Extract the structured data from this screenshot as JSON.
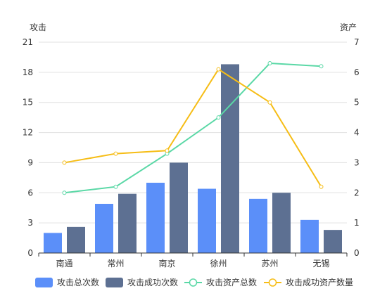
{
  "chart_data": {
    "type": "bar",
    "categories": [
      "南通",
      "常州",
      "南京",
      "徐州",
      "苏州",
      "无锡"
    ],
    "y_left": {
      "label": "攻击",
      "ticks": [
        0,
        3,
        6,
        9,
        12,
        15,
        18,
        21
      ],
      "ylim": [
        0,
        21
      ]
    },
    "y_right": {
      "label": "资产",
      "ticks": [
        0,
        1,
        2,
        3,
        4,
        5,
        6,
        7
      ],
      "ylim": [
        0,
        7
      ]
    },
    "bar_series": [
      {
        "name": "攻击总次数",
        "axis": "left",
        "color": "#5B8FF9",
        "values": [
          2,
          4.9,
          7,
          6.4,
          5.4,
          3.3
        ]
      },
      {
        "name": "攻击成功次数",
        "axis": "left",
        "color": "#5D7092",
        "values": [
          2.6,
          5.9,
          9,
          18.8,
          6,
          2.3
        ]
      }
    ],
    "line_series": [
      {
        "name": "攻击资产总数",
        "axis": "right",
        "color": "#5AD8A6",
        "values": [
          2,
          2.2,
          3.3,
          4.5,
          6.3,
          6.2
        ]
      },
      {
        "name": "攻击成功资产数量",
        "axis": "right",
        "color": "#F6BD16",
        "values": [
          3,
          3.3,
          3.4,
          6.1,
          5,
          2.2
        ]
      }
    ],
    "grid": true,
    "legend_position": "bottom"
  }
}
